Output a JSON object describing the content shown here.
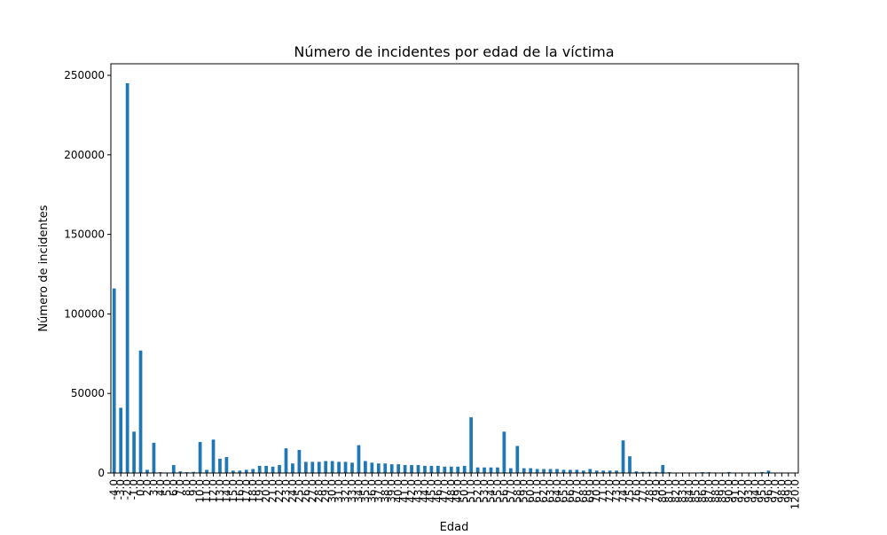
{
  "chart_data": {
    "type": "bar",
    "title": "Número de incidentes por edad de la víctima",
    "xlabel": "Edad",
    "ylabel": "Número de incidentes",
    "color": "#1f77b4",
    "categories": [
      "-4.0",
      "-3.0",
      "-2.0",
      "-1.0",
      "0.0",
      "2.0",
      "3.0",
      "4.0",
      "5.0",
      "6.0",
      "7.0",
      "8.0",
      "9.0",
      "10.0",
      "11.0",
      "12.0",
      "13.0",
      "14.0",
      "15.0",
      "16.0",
      "17.0",
      "18.0",
      "19.0",
      "20.0",
      "21.0",
      "22.0",
      "23.0",
      "24.0",
      "25.0",
      "26.0",
      "27.0",
      "28.0",
      "29.0",
      "30.0",
      "31.0",
      "32.0",
      "33.0",
      "34.0",
      "35.0",
      "36.0",
      "37.0",
      "38.0",
      "39.0",
      "40.0",
      "41.0",
      "42.0",
      "43.0",
      "44.0",
      "45.0",
      "46.0",
      "47.0",
      "48.0",
      "49.0",
      "50.0",
      "51.0",
      "52.0",
      "53.0",
      "54.0",
      "55.0",
      "56.0",
      "57.0",
      "58.0",
      "59.0",
      "60.0",
      "61.0",
      "62.0",
      "63.0",
      "64.0",
      "65.0",
      "66.0",
      "67.0",
      "68.0",
      "69.0",
      "70.0",
      "71.0",
      "72.0",
      "73.0",
      "74.0",
      "75.0",
      "76.0",
      "77.0",
      "78.0",
      "79.0",
      "80.0",
      "81.0",
      "82.0",
      "83.0",
      "84.0",
      "85.0",
      "86.0",
      "87.0",
      "88.0",
      "89.0",
      "90.0",
      "91.0",
      "92.0",
      "93.0",
      "94.0",
      "95.0",
      "96.0",
      "97.0",
      "98.0",
      "99.0",
      "120.0"
    ],
    "values": [
      116000,
      41000,
      245000,
      26000,
      77000,
      2000,
      19000,
      500,
      300,
      5000,
      1000,
      500,
      700,
      19500,
      2000,
      21000,
      9000,
      10000,
      1500,
      1500,
      2000,
      2500,
      4500,
      4500,
      4000,
      5000,
      15500,
      6000,
      14500,
      7000,
      7000,
      7000,
      7500,
      7500,
      7000,
      7000,
      6500,
      17500,
      7500,
      6500,
      6000,
      6000,
      5500,
      5500,
      5000,
      5000,
      5000,
      4500,
      4500,
      4500,
      4000,
      4000,
      4000,
      4500,
      35000,
      3500,
      3500,
      3500,
      3500,
      26000,
      3000,
      17000,
      3000,
      3000,
      2500,
      2500,
      2500,
      2500,
      2000,
      2000,
      2000,
      1500,
      2500,
      1500,
      1500,
      1500,
      1500,
      20500,
      10500,
      1000,
      700,
      700,
      700,
      5000,
      500,
      200,
      200,
      200,
      300,
      500,
      500,
      300,
      300,
      600,
      200,
      300,
      300,
      300,
      600,
      1500,
      200,
      100,
      100,
      100
    ],
    "ylim": [
      0,
      257250
    ],
    "yticks": [
      0,
      50000,
      100000,
      150000,
      200000,
      250000
    ]
  }
}
